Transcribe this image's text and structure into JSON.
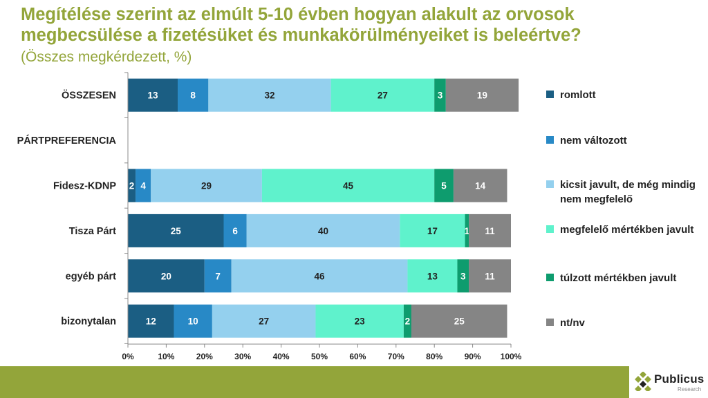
{
  "title": "Megítélése szerint az elmúlt 5-10 évben hogyan alakult az orvosok megbecsülése a fizetésüket és munkakörülményeiket is beleértve?",
  "subtitle": "(Összes megkérdezett, %)",
  "chart_data": {
    "type": "bar",
    "orientation": "horizontal",
    "stacked": true,
    "categories": [
      "ÖSSZESEN",
      "PÁRTPREFERENCIA",
      "Fidesz-KDNP",
      "Tisza Párt",
      "egyéb párt",
      "bizonytalan"
    ],
    "series": [
      {
        "name": "romlott",
        "color": "#1b5e83",
        "label_color": "#ffffff",
        "values": [
          13,
          null,
          2,
          25,
          20,
          12
        ]
      },
      {
        "name": "nem változott",
        "color": "#2889c6",
        "label_color": "#ffffff",
        "values": [
          8,
          null,
          4,
          6,
          7,
          10
        ]
      },
      {
        "name": "kicsit javult, de még mindig nem megfelelő",
        "color": "#94d0ee",
        "label_color": "#222222",
        "values": [
          32,
          null,
          29,
          40,
          46,
          27
        ]
      },
      {
        "name": "megfelelő mértékben javult",
        "color": "#5ff2cc",
        "label_color": "#222222",
        "values": [
          27,
          null,
          45,
          17,
          13,
          23
        ]
      },
      {
        "name": "túlzott mértékben javult",
        "color": "#0e9c6e",
        "label_color": "#ffffff",
        "values": [
          3,
          null,
          5,
          1,
          3,
          2
        ]
      },
      {
        "name": "nt/nv",
        "color": "#858585",
        "label_color": "#ffffff",
        "values": [
          19,
          null,
          14,
          11,
          11,
          25
        ]
      }
    ],
    "xlim": [
      0,
      100
    ],
    "xticks": [
      "0%",
      "10%",
      "20%",
      "30%",
      "40%",
      "50%",
      "60%",
      "70%",
      "80%",
      "90%",
      "100%"
    ],
    "legend_position": "right",
    "grid": false
  },
  "logo": {
    "name": "Publicus",
    "sub": "Research",
    "color": "#93a53a"
  }
}
